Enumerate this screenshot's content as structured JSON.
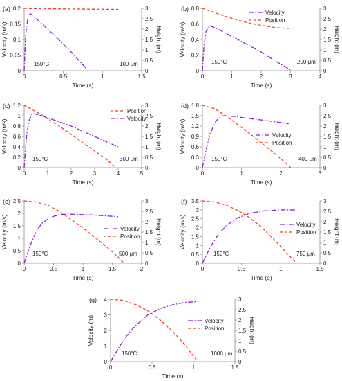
{
  "figure": {
    "colors": {
      "velocity": "#8e1fd0",
      "position": "#f0401c",
      "axis": "#8c8c8c",
      "text": "#222222"
    },
    "line_styles": {
      "velocity": "dash-dot",
      "position": "dashed"
    }
  },
  "chart_data": [
    {
      "panel_label": "(a)",
      "type": "line",
      "xlabel": "Time (s)",
      "ylabel_left": "Velocity (m/s)",
      "ylabel_right": "Height (m)",
      "xlim": [
        0,
        1.5
      ],
      "xticks": [
        "0",
        "0.5",
        "1",
        "1.5"
      ],
      "ylim_left": [
        0,
        0.2
      ],
      "yticks_left": [
        "0",
        "0.05",
        "0.1",
        "0.15",
        "0.2"
      ],
      "ylim_right": [
        0,
        3
      ],
      "yticks_right": [
        "0",
        "0.5",
        "1",
        "1.5",
        "2",
        "2.5",
        "3"
      ],
      "temperature": "150°C",
      "size": "100 μm",
      "legend": null,
      "series": [
        {
          "name": "Velocity",
          "axis": "left",
          "x": [
            0,
            0.02,
            0.05,
            0.08,
            0.2,
            0.4,
            0.6,
            0.8
          ],
          "y": [
            0,
            0.12,
            0.175,
            0.183,
            0.157,
            0.11,
            0.06,
            0.005
          ]
        },
        {
          "name": "Position",
          "axis": "right",
          "x": [
            0,
            0.1,
            0.3,
            0.6,
            0.9,
            1.2
          ],
          "y": [
            3,
            2.99,
            2.98,
            2.97,
            2.96,
            2.95
          ]
        }
      ]
    },
    {
      "panel_label": "(b)",
      "type": "line",
      "xlabel": "Time (s)",
      "ylabel_left": "Velocity (m/s)",
      "ylabel_right": "Height (m)",
      "xlim": [
        0,
        4
      ],
      "xticks": [
        "0",
        "1",
        "2",
        "3",
        "4"
      ],
      "ylim_left": [
        0,
        0.8
      ],
      "yticks_left": [
        "0",
        "0.2",
        "0.4",
        "0.6",
        "0.8"
      ],
      "ylim_right": [
        0,
        3
      ],
      "yticks_right": [
        "0",
        "0.5",
        "1",
        "1.5",
        "2",
        "2.5",
        "3"
      ],
      "temperature": "150°C",
      "size": "200 μm",
      "legend": [
        "Velocity",
        "Position"
      ],
      "series": [
        {
          "name": "Velocity",
          "axis": "left",
          "x": [
            0,
            0.05,
            0.12,
            0.25,
            0.6,
            1.2,
            2,
            2.5,
            3
          ],
          "y": [
            0,
            0.3,
            0.5,
            0.58,
            0.52,
            0.4,
            0.24,
            0.12,
            0.01
          ]
        },
        {
          "name": "Position",
          "axis": "right",
          "x": [
            0,
            0.5,
            1,
            1.5,
            2,
            2.5,
            3
          ],
          "y": [
            3,
            2.75,
            2.52,
            2.32,
            2.18,
            2.07,
            2.03
          ]
        }
      ]
    },
    {
      "panel_label": "(c)",
      "type": "line",
      "xlabel": "Time (s)",
      "ylabel_left": "Velocity (m/s)",
      "ylabel_right": "Height (m)",
      "xlim": [
        0,
        5
      ],
      "xticks": [
        "0",
        "1",
        "2",
        "3",
        "4",
        "5"
      ],
      "ylim_left": [
        0,
        1.2
      ],
      "yticks_left": [
        "0",
        "0.2",
        "0.4",
        "0.6",
        "0.8",
        "1",
        "1.2"
      ],
      "ylim_right": [
        0,
        3
      ],
      "yticks_right": [
        "0",
        "0.5",
        "1",
        "1.5",
        "2",
        "2.5",
        "3"
      ],
      "temperature": "150°C",
      "size": "300 μm",
      "legend": [
        "Position",
        "Velocity"
      ],
      "series": [
        {
          "name": "Velocity",
          "axis": "left",
          "x": [
            0,
            0.1,
            0.2,
            0.35,
            0.6,
            1,
            2,
            3,
            4
          ],
          "y": [
            0,
            0.6,
            0.9,
            1.04,
            1.02,
            0.96,
            0.8,
            0.6,
            0.4
          ]
        },
        {
          "name": "Position",
          "axis": "right",
          "x": [
            0,
            0.5,
            1,
            1.5,
            2,
            2.5,
            3,
            3.5,
            3.9
          ],
          "y": [
            3,
            2.7,
            2.35,
            2.0,
            1.6,
            1.2,
            0.8,
            0.4,
            0
          ]
        }
      ]
    },
    {
      "panel_label": "(d)",
      "type": "line",
      "xlabel": "Time (s)",
      "ylabel_left": "Velocity (m/s)",
      "ylabel_right": "Height (m)",
      "xlim": [
        0,
        3
      ],
      "xticks": [
        "0",
        "1",
        "2",
        "3"
      ],
      "ylim_left": [
        0,
        1.8
      ],
      "yticks_left": [
        "0",
        "0.3",
        "0.6",
        "0.9",
        "1.2",
        "1.5",
        "1.8"
      ],
      "ylim_right": [
        0,
        3
      ],
      "yticks_right": [
        "0",
        "0.5",
        "1",
        "1.5",
        "2",
        "2.5",
        "3"
      ],
      "temperature": "150°C",
      "size": "400 μm",
      "legend": [
        "Velocity",
        "Position"
      ],
      "series": [
        {
          "name": "Velocity",
          "axis": "left",
          "x": [
            0,
            0.1,
            0.2,
            0.35,
            0.5,
            0.8,
            1.2,
            1.7,
            2.2
          ],
          "y": [
            0,
            0.55,
            1.0,
            1.35,
            1.5,
            1.48,
            1.42,
            1.35,
            1.27
          ]
        },
        {
          "name": "Position",
          "axis": "right",
          "x": [
            0,
            0.3,
            0.6,
            0.9,
            1.2,
            1.5,
            1.8,
            2.1,
            2.25
          ],
          "y": [
            3,
            2.85,
            2.5,
            2.07,
            1.65,
            1.2,
            0.75,
            0.27,
            0
          ]
        }
      ]
    },
    {
      "panel_label": "(e)",
      "type": "line",
      "xlabel": "Time (s)",
      "ylabel_left": "Velocity (m/s)",
      "ylabel_right": "Height (m)",
      "xlim": [
        0,
        2
      ],
      "xticks": [
        "0",
        "0.5",
        "1",
        "1.5",
        "2"
      ],
      "ylim_left": [
        0,
        2.5
      ],
      "yticks_left": [
        "0",
        "0.5",
        "1",
        "1.5",
        "2",
        "2.5"
      ],
      "ylim_right": [
        0,
        3
      ],
      "yticks_right": [
        "0",
        "0.5",
        "1",
        "1.5",
        "2",
        "2.5",
        "3"
      ],
      "temperature": "150°C",
      "size": "500 μm",
      "legend": [
        "Velocity",
        "Position"
      ],
      "series": [
        {
          "name": "Velocity",
          "axis": "left",
          "x": [
            0,
            0.1,
            0.2,
            0.3,
            0.45,
            0.6,
            0.8,
            1.2,
            1.6
          ],
          "y": [
            0,
            0.7,
            1.25,
            1.6,
            1.85,
            1.95,
            1.97,
            1.93,
            1.87
          ]
        },
        {
          "name": "Position",
          "axis": "right",
          "x": [
            0,
            0.2,
            0.4,
            0.6,
            0.8,
            1.0,
            1.2,
            1.4,
            1.6,
            1.7
          ],
          "y": [
            3,
            2.95,
            2.8,
            2.5,
            2.1,
            1.7,
            1.25,
            0.8,
            0.3,
            0
          ]
        }
      ]
    },
    {
      "panel_label": "(f)",
      "type": "line",
      "xlabel": "Time (s)",
      "ylabel_left": "Velocity (m/s)",
      "ylabel_right": "Height (m)",
      "xlim": [
        0,
        1.5
      ],
      "xticks": [
        "0",
        "0.5",
        "1",
        "1.5"
      ],
      "ylim_left": [
        0,
        3.5
      ],
      "yticks_left": [
        "0",
        "0.5",
        "1",
        "1.5",
        "2",
        "2.5",
        "3",
        "3.5"
      ],
      "ylim_right": [
        0,
        3
      ],
      "yticks_right": [
        "0",
        "0.5",
        "1",
        "1.5",
        "2",
        "2.5",
        "3"
      ],
      "temperature": "150°C",
      "size": "750 μm",
      "legend": [
        "Velocity",
        "Position"
      ],
      "series": [
        {
          "name": "Velocity",
          "axis": "left",
          "x": [
            0,
            0.1,
            0.2,
            0.3,
            0.45,
            0.6,
            0.8,
            1.0,
            1.2
          ],
          "y": [
            0,
            0.9,
            1.6,
            2.1,
            2.55,
            2.8,
            2.95,
            3.0,
            2.99
          ]
        },
        {
          "name": "Position",
          "axis": "right",
          "x": [
            0,
            0.15,
            0.3,
            0.45,
            0.6,
            0.75,
            0.9,
            1.05,
            1.2
          ],
          "y": [
            3,
            2.95,
            2.8,
            2.55,
            2.2,
            1.75,
            1.2,
            0.6,
            0
          ]
        }
      ]
    },
    {
      "panel_label": "(g)",
      "type": "line",
      "xlabel": "Time (s)",
      "ylabel_left": "Velocity (m)",
      "ylabel_right": "Height (m)",
      "xlim": [
        0,
        1.5
      ],
      "xticks": [
        "0",
        "0.5",
        "1",
        "1.5"
      ],
      "ylim_left": [
        0,
        4
      ],
      "yticks_left": [
        "0",
        "1",
        "2",
        "3",
        "4"
      ],
      "ylim_right": [
        0,
        3
      ],
      "yticks_right": [
        "0",
        "0.5",
        "1",
        "1.5",
        "2",
        "2.5",
        "3"
      ],
      "temperature": "150°C",
      "size": "1000 μm",
      "legend": [
        "Velocity",
        "Position"
      ],
      "series": [
        {
          "name": "Velocity",
          "axis": "left",
          "x": [
            0,
            0.1,
            0.2,
            0.3,
            0.45,
            0.6,
            0.75,
            0.9,
            1.05
          ],
          "y": [
            0,
            0.9,
            1.7,
            2.3,
            3.0,
            3.4,
            3.65,
            3.8,
            3.85
          ]
        },
        {
          "name": "Position",
          "axis": "right",
          "x": [
            0,
            0.15,
            0.3,
            0.45,
            0.6,
            0.75,
            0.9,
            1.05
          ],
          "y": [
            3,
            2.95,
            2.75,
            2.45,
            2.0,
            1.45,
            0.8,
            0
          ]
        }
      ]
    }
  ]
}
